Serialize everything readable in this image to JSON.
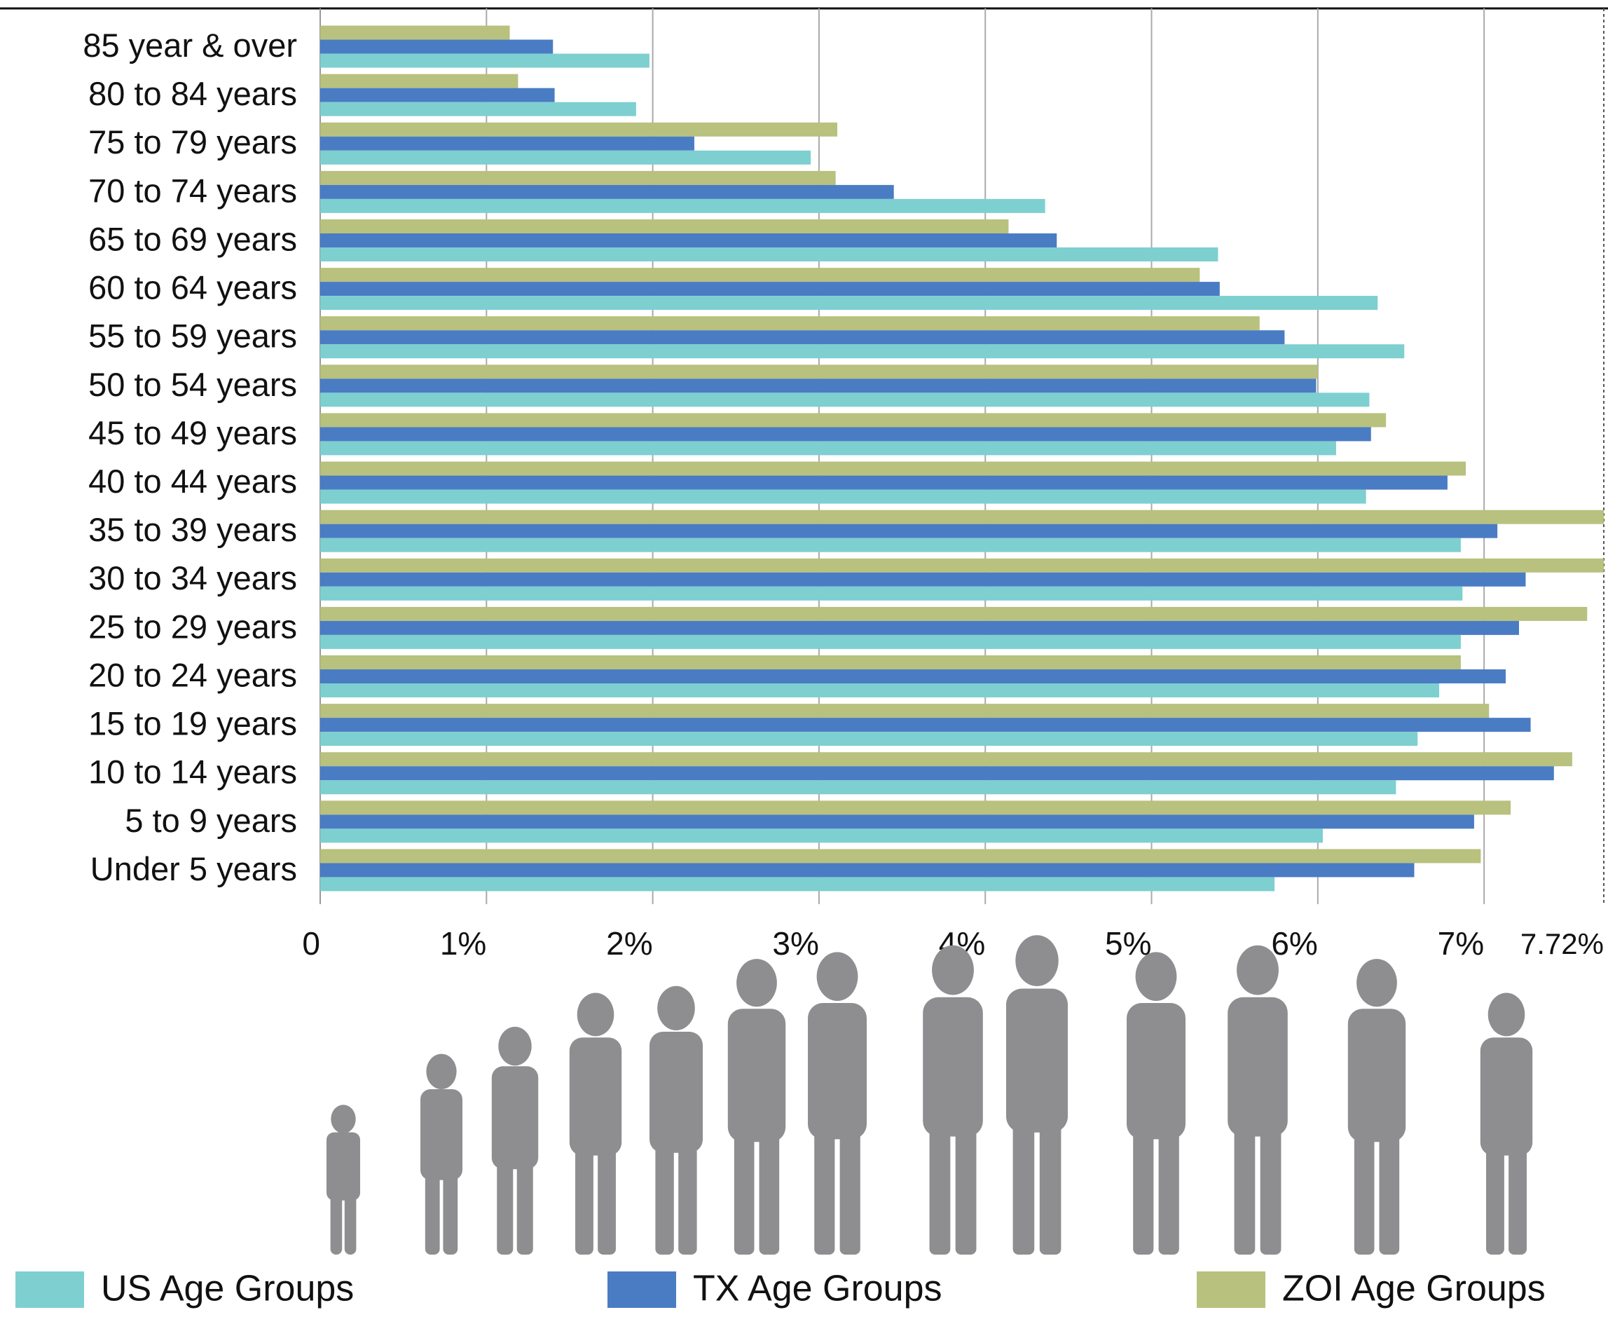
{
  "chart_data": {
    "type": "hbar",
    "categories": [
      "85 year & over",
      "80 to 84 years",
      "75 to 79 years",
      "70 to 74 years",
      "65 to 69 years",
      "60 to 64 years",
      "55 to 59 years",
      "50 to 54 years",
      "45 to 49 years",
      "40 to 44 years",
      "35 to 39 years",
      "30 to 34 years",
      "25 to 29 years",
      "20 to 24 years",
      "15 to 19 years",
      "10 to 14 years",
      "5 to 9 years",
      "Under 5 years"
    ],
    "series": [
      {
        "name": "US Age Groups",
        "color": "#7ecfd0",
        "values": [
          1.98,
          1.9,
          2.95,
          4.36,
          5.4,
          6.36,
          6.52,
          6.31,
          6.11,
          6.29,
          6.86,
          6.87,
          6.86,
          6.73,
          6.6,
          6.47,
          6.03,
          5.74
        ]
      },
      {
        "name": "TX Age Groups",
        "color": "#4a7cc4",
        "values": [
          1.4,
          1.41,
          2.25,
          3.45,
          4.43,
          5.41,
          5.8,
          5.99,
          6.32,
          6.78,
          7.08,
          7.25,
          7.21,
          7.13,
          7.28,
          7.42,
          6.94,
          6.58
        ]
      },
      {
        "name": "ZOI Age Groups",
        "color": "#b8c17e",
        "values": [
          1.14,
          1.19,
          3.11,
          3.1,
          4.14,
          5.29,
          5.65,
          6.0,
          6.41,
          6.89,
          7.72,
          7.72,
          7.62,
          6.86,
          7.03,
          7.53,
          7.16,
          6.98
        ]
      }
    ],
    "xlim": [
      0,
      7.72
    ],
    "xticks": [
      0,
      {
        "value": 1,
        "label": "1%"
      },
      {
        "value": 2,
        "label": "2%"
      },
      {
        "value": 3,
        "label": "3%"
      },
      {
        "value": 4,
        "label": "4%"
      },
      {
        "value": 5,
        "label": "5%"
      },
      {
        "value": 6,
        "label": "6%"
      },
      {
        "value": 7,
        "label": "7%"
      },
      {
        "value": 7.72,
        "label": "7.72%"
      }
    ],
    "grid": true
  }
}
